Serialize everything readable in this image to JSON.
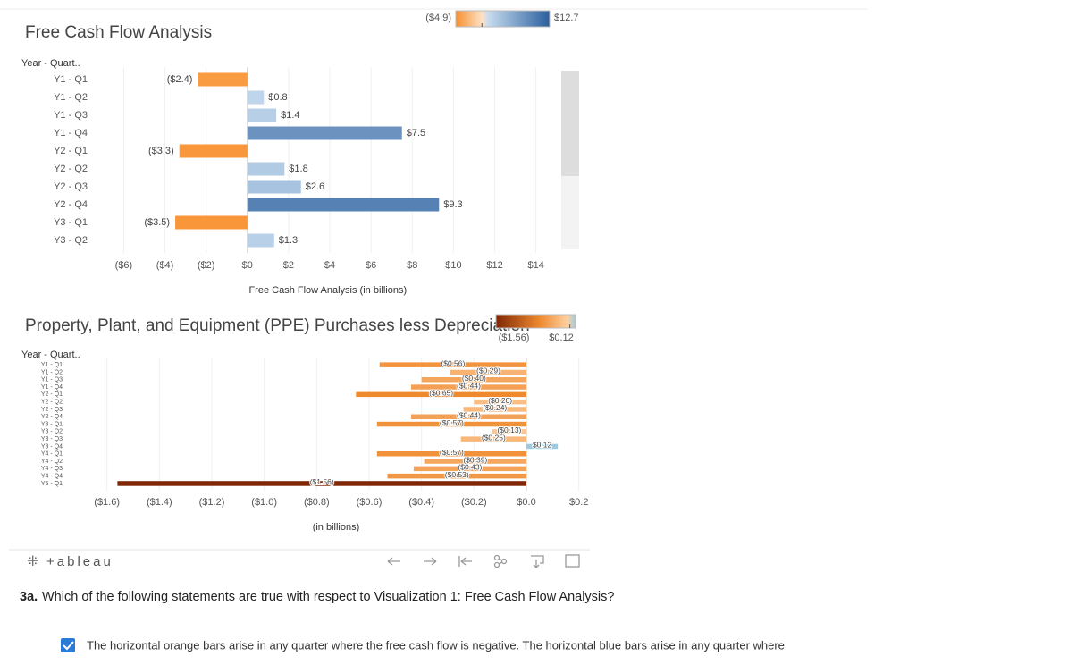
{
  "chart_data": [
    {
      "type": "bar",
      "orientation": "horizontal",
      "title": "Free Cash Flow Analysis",
      "y_header": "Year - Quart..",
      "categories": [
        "Y1 - Q1",
        "Y1 - Q2",
        "Y1 - Q3",
        "Y1 - Q4",
        "Y2 - Q1",
        "Y2 - Q2",
        "Y2 - Q3",
        "Y2 - Q4",
        "Y3 - Q1",
        "Y3 - Q2"
      ],
      "values": [
        -2.4,
        0.8,
        1.4,
        7.5,
        -3.3,
        1.8,
        2.6,
        9.3,
        -3.5,
        1.3
      ],
      "value_labels": [
        "($2.4)",
        "$0.8",
        "$1.4",
        "$7.5",
        "($3.3)",
        "$1.8",
        "$2.6",
        "$9.3",
        "($3.5)",
        "$1.3"
      ],
      "xlabel": "Free Cash Flow Analysis (in billions)",
      "xlim": [
        -6.8,
        15.1
      ],
      "xticks": [
        {
          "value": -6,
          "label": "($6)"
        },
        {
          "value": -4,
          "label": "($4)"
        },
        {
          "value": -2,
          "label": "($2)"
        },
        {
          "value": 0,
          "label": "$0"
        },
        {
          "value": 2,
          "label": "$2"
        },
        {
          "value": 4,
          "label": "$4"
        },
        {
          "value": 6,
          "label": "$6"
        },
        {
          "value": 8,
          "label": "$8"
        },
        {
          "value": 10,
          "label": "$10"
        },
        {
          "value": 12,
          "label": "$12"
        },
        {
          "value": 14,
          "label": "$14"
        }
      ],
      "color_legend": [
        {
          "value": -4.9,
          "label": "($4.9)"
        },
        {
          "value": 12.7,
          "label": "$12.7"
        }
      ],
      "grid": true
    },
    {
      "type": "bar",
      "orientation": "horizontal",
      "title": "Property, Plant, and Equipment (PPE) Purchases less Depreciation",
      "y_header": "Year - Quart..",
      "categories": [
        "Y1 - Q1",
        "Y1 - Q2",
        "Y1 - Q3",
        "Y1 - Q4",
        "Y2 - Q1",
        "Y2 - Q2",
        "Y2 - Q3",
        "Y2 - Q4",
        "Y3 - Q1",
        "Y3 - Q2",
        "Y3 - Q3",
        "Y3 - Q4",
        "Y4 - Q1",
        "Y4 - Q2",
        "Y4 - Q3",
        "Y4 - Q4",
        "Y5 - Q1"
      ],
      "values": [
        -0.56,
        -0.29,
        -0.4,
        -0.44,
        -0.65,
        -0.2,
        -0.24,
        -0.44,
        -0.57,
        -0.13,
        -0.25,
        0.12,
        -0.57,
        -0.39,
        -0.43,
        -0.53,
        -1.56
      ],
      "value_labels": [
        "($0.56)",
        "($0.29)",
        "($0.40)",
        "($0.44)",
        "($0.65)",
        "($0.20)",
        "($0.24)",
        "($0.44)",
        "($0.57)",
        "($0.13)",
        "($0.25)",
        "$0.12",
        "($0.57)",
        "($0.39)",
        "($0.43)",
        "($0.53)",
        "($1.56)"
      ],
      "xlabel": "(in billions)",
      "xlim": [
        -1.65,
        0.225
      ],
      "xticks": [
        {
          "value": -1.6,
          "label": "($1.6)"
        },
        {
          "value": -1.4,
          "label": "($1.4)"
        },
        {
          "value": -1.2,
          "label": "($1.2)"
        },
        {
          "value": -1.0,
          "label": "($1.0)"
        },
        {
          "value": -0.8,
          "label": "($0.8)"
        },
        {
          "value": -0.6,
          "label": "($0.6)"
        },
        {
          "value": -0.4,
          "label": "($0.4)"
        },
        {
          "value": -0.2,
          "label": "($0.2)"
        },
        {
          "value": 0,
          "label": "$0.0"
        },
        {
          "value": 0.2,
          "label": "$0.2"
        }
      ],
      "color_legend": [
        {
          "value": -1.56,
          "label": "($1.56)"
        },
        {
          "value": 0.12,
          "label": "$0.12"
        }
      ],
      "grid": true
    }
  ],
  "toolbar": {
    "logo": "+ableau"
  },
  "question": {
    "number": "3a.",
    "text": "Which of the following statements are true with respect to Visualization 1: Free Cash Flow Analysis?"
  },
  "answer": {
    "text": "The horizontal orange bars arise in any quarter where the free cash flow is negative. The horizontal blue bars arise in any quarter where"
  }
}
